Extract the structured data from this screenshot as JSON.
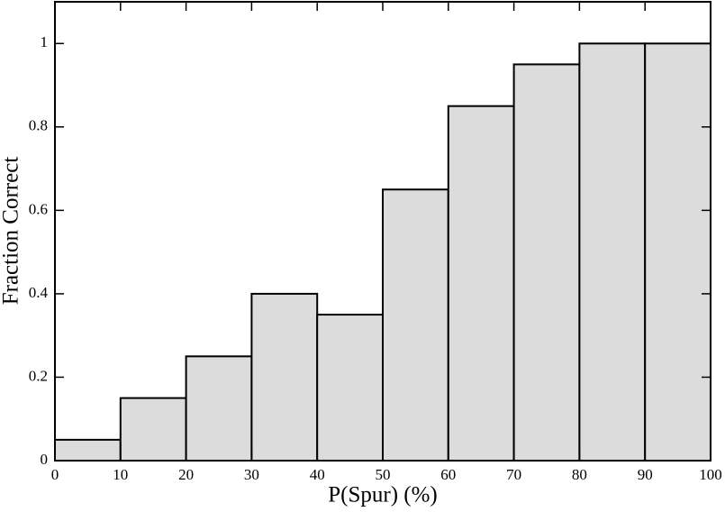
{
  "chart_data": {
    "type": "histogram",
    "x_label": "P(Spur) (%)",
    "y_label": "Fraction Correct",
    "bins": [
      0,
      10,
      20,
      30,
      40,
      50,
      60,
      70,
      80,
      90,
      100
    ],
    "values": [
      0.05,
      0.15,
      0.25,
      0.4,
      0.35,
      0.65,
      0.85,
      0.95,
      1,
      1
    ],
    "color": "#dcdcdc",
    "edge_color": "#000000",
    "xlim": [
      0,
      100
    ],
    "xticks": [
      0,
      10,
      20,
      30,
      40,
      50,
      60,
      70,
      80,
      90,
      100
    ],
    "ylim": [
      0,
      1.1
    ],
    "yticks": [
      0,
      0.2,
      0.4,
      0.6,
      0.8,
      1
    ],
    "grid": false
  }
}
